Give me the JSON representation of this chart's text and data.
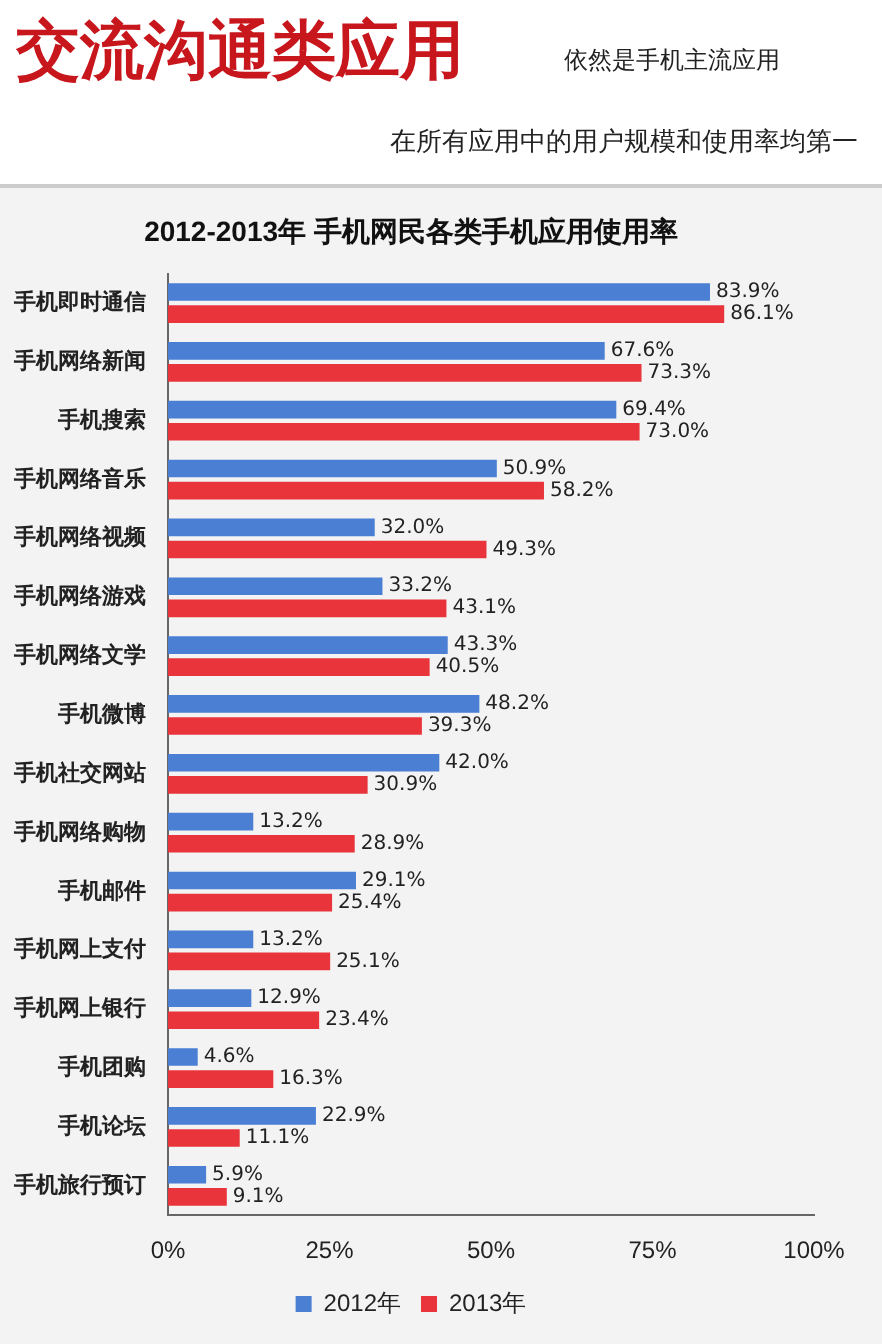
{
  "chart_data": {
    "type": "bar",
    "orientation": "horizontal",
    "title": "2012-2013年 手机网民各类手机应用使用率",
    "annotations": [
      "交流沟通类应用",
      "依然是手机主流应用",
      "在所有应用中的用户规模和使用率均第一"
    ],
    "categories": [
      "手机即时通信",
      "手机网络新闻",
      "手机搜索",
      "手机网络音乐",
      "手机网络视频",
      "手机网络游戏",
      "手机网络文学",
      "手机微博",
      "手机社交网站",
      "手机网络购物",
      "手机邮件",
      "手机网上支付",
      "手机网上银行",
      "手机团购",
      "手机论坛",
      "手机旅行预订"
    ],
    "series": [
      {
        "name": "2012年",
        "color": "#4a7fd4",
        "values": [
          83.9,
          67.6,
          69.4,
          50.9,
          32.0,
          33.2,
          43.3,
          48.2,
          42.0,
          13.2,
          29.1,
          13.2,
          12.9,
          4.6,
          22.9,
          5.9
        ],
        "value_labels": [
          "83.9%",
          "67.6%",
          "69.4%",
          "50.9%",
          "32.0%",
          "33.2%",
          "43.3%",
          "48.2%",
          "42.0%",
          "13.2%",
          "29.1%",
          "13.2%",
          "12.9%",
          "4.6%",
          "22.9%",
          "5.9%"
        ]
      },
      {
        "name": "2013年",
        "color": "#e8343a",
        "values": [
          86.1,
          73.3,
          73.0,
          58.2,
          49.3,
          43.1,
          40.5,
          39.3,
          30.9,
          28.9,
          25.4,
          25.1,
          23.4,
          16.3,
          11.1,
          9.1
        ],
        "value_labels": [
          "86.1%",
          "73.3%",
          "73.0%",
          "58.2%",
          "49.3%",
          "43.1%",
          "40.5%",
          "39.3%",
          "30.9%",
          "28.9%",
          "25.4%",
          "25.1%",
          "23.4%",
          "16.3%",
          "11.1%",
          "9.1%"
        ]
      }
    ],
    "xlim": [
      0,
      100
    ],
    "xticks": [
      {
        "value": 0,
        "label": "0%"
      },
      {
        "value": 25,
        "label": "25%"
      },
      {
        "value": 50,
        "label": "50%"
      },
      {
        "value": 75,
        "label": "75%"
      },
      {
        "value": 100,
        "label": "100%"
      }
    ],
    "legend": "bottom"
  }
}
